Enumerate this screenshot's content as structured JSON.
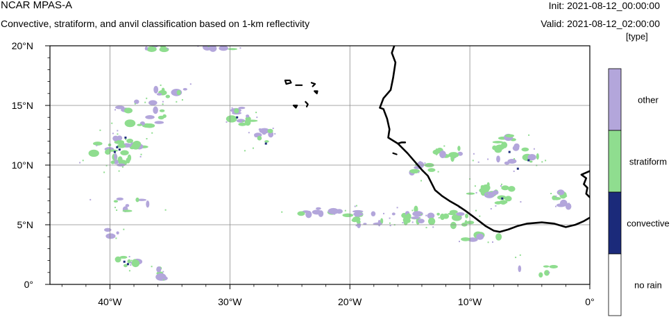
{
  "header": {
    "title": "NCAR MPAS-A",
    "subtitle": "Convective, stratiform, and anvil classification based on 1-km reflectivity",
    "init": "Init: 2021-08-12_00:00:00",
    "valid": "Valid: 2021-08-12_02:00:00",
    "unit": "[type]"
  },
  "map": {
    "lon_range": [
      -45,
      0
    ],
    "lat_range": [
      0,
      20
    ],
    "lon_ticks": [
      {
        "lon": -40,
        "label": "40°W"
      },
      {
        "lon": -30,
        "label": "30°W"
      },
      {
        "lon": -20,
        "label": "20°W"
      },
      {
        "lon": -10,
        "label": "10°W"
      },
      {
        "lon": 0,
        "label": "0°"
      }
    ],
    "lat_ticks": [
      {
        "lat": 0,
        "label": "0°"
      },
      {
        "lat": 5,
        "label": "5°N"
      },
      {
        "lat": 10,
        "label": "10°N"
      },
      {
        "lat": 15,
        "label": "15°N"
      },
      {
        "lat": 20,
        "label": "20°N"
      }
    ],
    "grid": true,
    "colors": {
      "other": "#b3a6db",
      "stratiform": "#8fdd8f",
      "convective": "#1b2a7a",
      "no_rain": "#ffffff",
      "coast": "#000000",
      "grid": "#8a8a8a"
    },
    "coast_mainland": [
      [
        -16.3,
        20.0
      ],
      [
        -16.5,
        19.4
      ],
      [
        -16.2,
        18.6
      ],
      [
        -16.4,
        17.3
      ],
      [
        -16.6,
        16.3
      ],
      [
        -17.2,
        15.6
      ],
      [
        -17.5,
        14.8
      ],
      [
        -17.2,
        14.7
      ],
      [
        -16.9,
        13.9
      ],
      [
        -16.7,
        13.0
      ],
      [
        -16.8,
        12.3
      ],
      [
        -16.0,
        11.8
      ],
      [
        -15.2,
        11.0
      ],
      [
        -14.6,
        10.3
      ],
      [
        -14.0,
        9.6
      ],
      [
        -13.5,
        9.1
      ],
      [
        -13.2,
        8.5
      ],
      [
        -12.9,
        7.9
      ],
      [
        -12.3,
        7.4
      ],
      [
        -11.7,
        7.0
      ],
      [
        -11.0,
        6.6
      ],
      [
        -10.4,
        6.2
      ],
      [
        -9.6,
        5.6
      ],
      [
        -8.7,
        4.9
      ],
      [
        -8.0,
        4.5
      ],
      [
        -7.5,
        4.4
      ],
      [
        -6.8,
        4.6
      ],
      [
        -6.0,
        4.9
      ],
      [
        -5.2,
        5.1
      ],
      [
        -4.0,
        5.2
      ],
      [
        -3.0,
        5.1
      ],
      [
        -2.0,
        4.8
      ],
      [
        -1.2,
        5.0
      ],
      [
        -0.5,
        5.3
      ],
      [
        0.0,
        5.6
      ]
    ],
    "coast_bissagos": [
      [
        -16.0,
        11.8
      ],
      [
        -15.7,
        11.9
      ],
      [
        -15.4,
        11.9
      ]
    ],
    "coast_volta": [
      [
        0.0,
        7.3
      ],
      [
        -0.3,
        7.6
      ],
      [
        -0.2,
        8.1
      ],
      [
        -0.5,
        8.4
      ],
      [
        -0.3,
        8.9
      ],
      [
        -0.7,
        9.2
      ],
      [
        0.0,
        9.5
      ]
    ],
    "islands": [
      [
        [
          -25.4,
          17.1
        ],
        [
          -25.0,
          17.1
        ],
        [
          -24.9,
          16.9
        ],
        [
          -25.3,
          16.8
        ],
        [
          -25.4,
          17.1
        ]
      ],
      [
        [
          -24.5,
          16.7
        ],
        [
          -24.0,
          16.7
        ]
      ],
      [
        [
          -23.2,
          16.9
        ],
        [
          -22.9,
          16.8
        ],
        [
          -23.1,
          16.6
        ]
      ],
      [
        [
          -22.95,
          16.2
        ],
        [
          -22.7,
          16.2
        ],
        [
          -22.75,
          16.0
        ],
        [
          -22.95,
          16.2
        ]
      ],
      [
        [
          -24.7,
          15.0
        ],
        [
          -24.4,
          15.0
        ],
        [
          -24.5,
          14.8
        ],
        [
          -24.7,
          15.0
        ]
      ],
      [
        [
          -23.7,
          15.3
        ],
        [
          -23.5,
          15.1
        ],
        [
          -23.6,
          14.9
        ]
      ],
      [
        [
          -16.4,
          11.0
        ],
        [
          -16.1,
          10.9
        ]
      ]
    ],
    "clusters": [
      {
        "lon": -39.3,
        "lat": 11.2,
        "rlon": 2.2,
        "rlat": 1.2,
        "strat": 0.75,
        "n": 30
      },
      {
        "lon": -37.2,
        "lat": 14.4,
        "rlon": 2.2,
        "rlat": 1.2,
        "strat": 0.55,
        "n": 16
      },
      {
        "lon": -35.0,
        "lat": 16.2,
        "rlon": 1.4,
        "rlat": 0.5,
        "strat": 0.5,
        "n": 8
      },
      {
        "lon": -29.0,
        "lat": 14.0,
        "rlon": 1.0,
        "rlat": 0.8,
        "strat": 0.55,
        "n": 12
      },
      {
        "lon": -27.4,
        "lat": 12.5,
        "rlon": 1.0,
        "rlat": 0.9,
        "strat": 0.3,
        "n": 9
      },
      {
        "lon": -36.0,
        "lat": 19.8,
        "rlon": 1.2,
        "rlat": 0.3,
        "strat": 0.7,
        "n": 5
      },
      {
        "lon": -30.5,
        "lat": 19.9,
        "rlon": 1.5,
        "rlat": 0.2,
        "strat": 0.6,
        "n": 5
      },
      {
        "lon": -38.5,
        "lat": 1.9,
        "rlon": 0.9,
        "rlat": 0.5,
        "strat": 0.8,
        "n": 8
      },
      {
        "lon": -35.8,
        "lat": 0.9,
        "rlon": 0.6,
        "rlat": 0.5,
        "strat": 0.6,
        "n": 6
      },
      {
        "lon": -38.5,
        "lat": 6.6,
        "rlon": 2.2,
        "rlat": 0.6,
        "strat": 0.2,
        "n": 8
      },
      {
        "lon": -22.5,
        "lat": 6.1,
        "rlon": 2.2,
        "rlat": 0.4,
        "strat": 0.1,
        "n": 10
      },
      {
        "lon": -18.5,
        "lat": 5.6,
        "rlon": 1.8,
        "rlat": 0.7,
        "strat": 0.6,
        "n": 14
      },
      {
        "lon": -15.2,
        "lat": 5.7,
        "rlon": 1.5,
        "rlat": 0.7,
        "strat": 0.7,
        "n": 14
      },
      {
        "lon": -11.5,
        "lat": 5.6,
        "rlon": 2.0,
        "rlat": 0.7,
        "strat": 0.6,
        "n": 14
      },
      {
        "lon": -8.0,
        "lat": 7.6,
        "rlon": 2.0,
        "rlat": 0.9,
        "strat": 0.8,
        "n": 18
      },
      {
        "lon": -11.5,
        "lat": 11.0,
        "rlon": 1.5,
        "rlat": 0.5,
        "strat": 0.6,
        "n": 10
      },
      {
        "lon": -6.2,
        "lat": 11.2,
        "rlon": 2.0,
        "rlat": 1.3,
        "strat": 0.7,
        "n": 20
      },
      {
        "lon": -14.0,
        "lat": 9.6,
        "rlon": 1.0,
        "rlat": 0.6,
        "strat": 0.5,
        "n": 8
      },
      {
        "lon": -2.5,
        "lat": 7.4,
        "rlon": 0.6,
        "rlat": 0.4,
        "strat": 0.7,
        "n": 5
      },
      {
        "lon": -2.0,
        "lat": 6.8,
        "rlon": 0.6,
        "rlat": 0.3,
        "strat": 0.3,
        "n": 4
      },
      {
        "lon": -9.0,
        "lat": 3.9,
        "rlon": 2.0,
        "rlat": 0.3,
        "strat": 0.3,
        "n": 6
      },
      {
        "lon": -4.5,
        "lat": 1.4,
        "rlon": 1.5,
        "rlat": 0.8,
        "strat": 0.4,
        "n": 5
      },
      {
        "lon": -40.0,
        "lat": 4.3,
        "rlon": 0.8,
        "rlat": 0.3,
        "strat": 0.0,
        "n": 3
      }
    ],
    "convective_cells": [
      [
        -39.6,
        11.1
      ],
      [
        -39.4,
        11.5
      ],
      [
        -38.7,
        12.3
      ],
      [
        -39.2,
        11.3
      ],
      [
        -38.5,
        1.7
      ],
      [
        -29.4,
        14.0
      ],
      [
        -27.0,
        11.8
      ],
      [
        -6.7,
        11.1
      ],
      [
        -5.1,
        10.4
      ],
      [
        -6.0,
        9.7
      ],
      [
        -7.3,
        7.2
      ],
      [
        -38.8,
        1.9
      ]
    ]
  },
  "legend": {
    "items": [
      {
        "key": "other",
        "label": "other",
        "color": "#b3a6db"
      },
      {
        "key": "stratiform",
        "label": "stratiform",
        "color": "#8fdd8f"
      },
      {
        "key": "convective",
        "label": "convective",
        "color": "#1b2a7a"
      },
      {
        "key": "no_rain",
        "label": "no rain",
        "color": "#ffffff"
      }
    ]
  }
}
